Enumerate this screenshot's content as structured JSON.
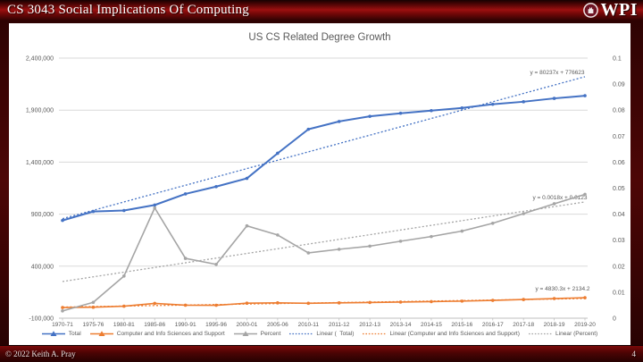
{
  "header": {
    "title": "CS 3043 Social Implications Of Computing",
    "logo_text": "WPI"
  },
  "footer": {
    "copyright": "© 2022 Keith A. Pray",
    "page_number": "4"
  },
  "chart_data": {
    "type": "line",
    "title": "US CS Related Degree Growth",
    "grid": true,
    "legend_position": "bottom",
    "categories": [
      "1970-71",
      "1975-76",
      "1980-81",
      "1985-86",
      "1990-91",
      "1995-96",
      "2000-01",
      "2005-06",
      "2010-11",
      "2011-12",
      "2012-13",
      "2013-14",
      "2014-15",
      "2015-16",
      "2016-17",
      "2017-18",
      "2018-19",
      "2019-20"
    ],
    "left_axis": {
      "min": -100000,
      "max": 2400000,
      "label_values": [
        "2,400,000",
        "1,900,000",
        "1,400,000",
        "900,000",
        "400,000",
        "-100,000"
      ]
    },
    "right_axis": {
      "min": 0,
      "max": 0.1,
      "label_values": [
        "0.1",
        "0.09",
        "0.08",
        "0.07",
        "0.06",
        "0.05",
        "0.04",
        "0.03",
        "0.02",
        "0.01",
        "0"
      ]
    },
    "series": [
      {
        "name": "Total",
        "axis": "left",
        "color": "#4472C4",
        "values": [
          839730,
          925746,
          935140,
          987823,
          1094538,
          1164792,
          1244171,
          1485242,
          1715913,
          1791046,
          1840164,
          1869814,
          1894934,
          1920718,
          1956032,
          1980644,
          2012854,
          2038431
        ]
      },
      {
        "name": "Computer and Info Sciences and Support",
        "axis": "left",
        "color": "#ED7D31",
        "values": [
          2388,
          5652,
          15121,
          41889,
          25159,
          24098,
          44142,
          47480,
          43072,
          47384,
          50962,
          55367,
          59581,
          64405,
          71420,
          79598,
          88633,
          97047
        ]
      },
      {
        "name": "Percent",
        "axis": "right",
        "color": "#A5A5A5",
        "values": [
          0.0028,
          0.0061,
          0.0162,
          0.0424,
          0.023,
          0.0207,
          0.0355,
          0.032,
          0.0251,
          0.0265,
          0.0277,
          0.0296,
          0.0314,
          0.0335,
          0.0365,
          0.0402,
          0.044,
          0.0476
        ]
      }
    ],
    "trendlines": [
      {
        "name": "Linear (  Total)",
        "equation": "y = 80237x + 776623",
        "axis": "left",
        "color": "#4472C4",
        "slope": 80237,
        "intercept": 776623
      },
      {
        "name": "Linear (Computer and Info Sciences and Support)",
        "equation": "y = 4830.3x + 2134.2",
        "axis": "left",
        "color": "#ED7D31",
        "slope": 4830.3,
        "intercept": 2134.2
      },
      {
        "name": "Linear (Percent)",
        "equation": "y = 0.0018x + 0.0123",
        "axis": "right",
        "color": "#A5A5A5",
        "slope": 0.0018,
        "intercept": 0.0123
      }
    ]
  }
}
